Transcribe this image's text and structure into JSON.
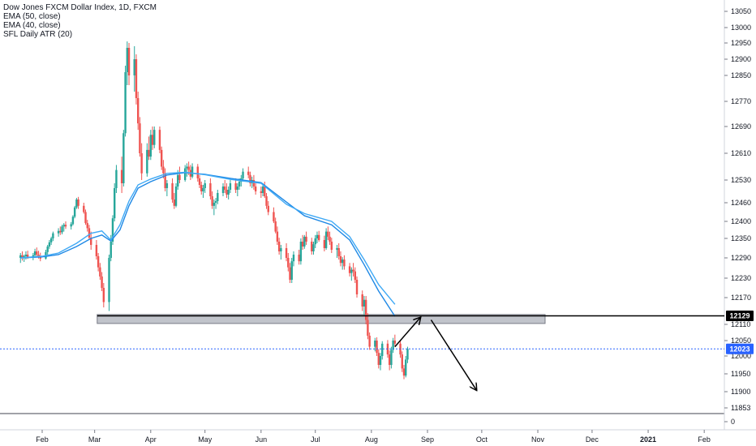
{
  "chart_data": {
    "type": "candlestick",
    "legend": {
      "symbol": "Dow Jones FXCM Dollar Index, 1D, FXCM",
      "ema50": "EMA (50, close)",
      "ema40": "EMA (40, close)",
      "atr": "SFL Daily ATR (20)"
    },
    "y_ticks": [
      "13050",
      "13000",
      "12950",
      "12900",
      "12850",
      "12770",
      "12690",
      "12610",
      "12530",
      "12460",
      "12400",
      "12350",
      "12290",
      "12230",
      "12170",
      "12110",
      "12050",
      "12000",
      "11950",
      "11900",
      "11853",
      "0"
    ],
    "x_ticks": [
      "Feb",
      "Mar",
      "Apr",
      "May",
      "Jun",
      "Jul",
      "Aug",
      "Sep",
      "Oct",
      "Nov",
      "Dec",
      "2021",
      "Feb"
    ],
    "price_tags": [
      {
        "label": "12129",
        "color": "#000000"
      },
      {
        "label": "12023",
        "color": "#2962ff"
      }
    ],
    "colors": {
      "up": "#26a69a",
      "down": "#ef5350",
      "ema50": "#1e88e5",
      "ema40": "#3fa9f5",
      "zone": "#b2b5be",
      "drawing": "#000000",
      "last_price": "#2962ff"
    },
    "support_zone": {
      "low": 12112,
      "high": 12132
    },
    "horizontal_level": 12129,
    "last_price": 12023,
    "ema50_points": [
      [
        "2020-01-20",
        12290
      ],
      [
        "2020-02-01",
        12293
      ],
      [
        "2020-02-10",
        12300
      ],
      [
        "2020-02-20",
        12325
      ],
      [
        "2020-02-28",
        12350
      ],
      [
        "2020-03-05",
        12360
      ],
      [
        "2020-03-10",
        12342
      ],
      [
        "2020-03-15",
        12375
      ],
      [
        "2020-03-20",
        12450
      ],
      [
        "2020-03-25",
        12505
      ],
      [
        "2020-04-01",
        12525
      ],
      [
        "2020-04-10",
        12545
      ],
      [
        "2020-04-20",
        12552
      ],
      [
        "2020-05-01",
        12547
      ],
      [
        "2020-05-15",
        12535
      ],
      [
        "2020-06-01",
        12522
      ],
      [
        "2020-06-15",
        12462
      ],
      [
        "2020-06-25",
        12418
      ],
      [
        "2020-07-10",
        12390
      ],
      [
        "2020-07-20",
        12345
      ],
      [
        "2020-07-28",
        12270
      ],
      [
        "2020-08-05",
        12190
      ],
      [
        "2020-08-14",
        12128
      ]
    ],
    "ema40_points": [
      [
        "2020-01-20",
        12290
      ],
      [
        "2020-02-01",
        12295
      ],
      [
        "2020-02-10",
        12305
      ],
      [
        "2020-02-20",
        12335
      ],
      [
        "2020-02-28",
        12365
      ],
      [
        "2020-03-05",
        12372
      ],
      [
        "2020-03-10",
        12345
      ],
      [
        "2020-03-15",
        12390
      ],
      [
        "2020-03-20",
        12465
      ],
      [
        "2020-03-25",
        12515
      ],
      [
        "2020-04-01",
        12533
      ],
      [
        "2020-04-10",
        12550
      ],
      [
        "2020-04-20",
        12553
      ],
      [
        "2020-05-01",
        12546
      ],
      [
        "2020-05-15",
        12532
      ],
      [
        "2020-06-01",
        12520
      ],
      [
        "2020-06-15",
        12455
      ],
      [
        "2020-06-25",
        12425
      ],
      [
        "2020-07-10",
        12400
      ],
      [
        "2020-07-20",
        12355
      ],
      [
        "2020-07-28",
        12285
      ],
      [
        "2020-08-05",
        12210
      ],
      [
        "2020-08-14",
        12155
      ]
    ],
    "projection_points": [
      [
        "2020-08-14",
        12030
      ],
      [
        "2020-08-28",
        12125
      ],
      [
        "2020-09-03",
        12120
      ],
      [
        "2020-09-28",
        11905
      ]
    ],
    "candles": [
      [
        "2020-01-20",
        12290,
        12305,
        12275,
        12298
      ],
      [
        "2020-01-21",
        12298,
        12310,
        12282,
        12290
      ],
      [
        "2020-01-22",
        12290,
        12300,
        12278,
        12295
      ],
      [
        "2020-01-23",
        12295,
        12310,
        12285,
        12300
      ],
      [
        "2020-01-24",
        12300,
        12312,
        12287,
        12292
      ],
      [
        "2020-01-27",
        12292,
        12305,
        12283,
        12298
      ],
      [
        "2020-01-28",
        12298,
        12318,
        12290,
        12310
      ],
      [
        "2020-01-29",
        12310,
        12322,
        12295,
        12300
      ],
      [
        "2020-01-30",
        12300,
        12312,
        12288,
        12295
      ],
      [
        "2020-01-31",
        12295,
        12306,
        12280,
        12288
      ],
      [
        "2020-02-03",
        12288,
        12315,
        12285,
        12308
      ],
      [
        "2020-02-04",
        12308,
        12330,
        12300,
        12325
      ],
      [
        "2020-02-05",
        12325,
        12345,
        12318,
        12338
      ],
      [
        "2020-02-06",
        12338,
        12355,
        12330,
        12350
      ],
      [
        "2020-02-07",
        12350,
        12370,
        12342,
        12365
      ],
      [
        "2020-02-10",
        12365,
        12380,
        12355,
        12372
      ],
      [
        "2020-02-11",
        12372,
        12385,
        12360,
        12368
      ],
      [
        "2020-02-12",
        12368,
        12390,
        12362,
        12385
      ],
      [
        "2020-02-13",
        12385,
        12395,
        12370,
        12390
      ],
      [
        "2020-02-14",
        12390,
        12400,
        12378,
        12385
      ],
      [
        "2020-02-17",
        12385,
        12398,
        12376,
        12392
      ],
      [
        "2020-02-18",
        12392,
        12420,
        12388,
        12415
      ],
      [
        "2020-02-19",
        12415,
        12450,
        12410,
        12445
      ],
      [
        "2020-02-20",
        12445,
        12475,
        12440,
        12470
      ],
      [
        "2020-02-21",
        12470,
        12478,
        12440,
        12450
      ],
      [
        "2020-02-24",
        12450,
        12460,
        12425,
        12430
      ],
      [
        "2020-02-25",
        12430,
        12438,
        12390,
        12395
      ],
      [
        "2020-02-26",
        12395,
        12405,
        12370,
        12380
      ],
      [
        "2020-02-27",
        12380,
        12390,
        12345,
        12352
      ],
      [
        "2020-02-28",
        12352,
        12370,
        12315,
        12330
      ],
      [
        "2020-03-02",
        12330,
        12345,
        12285,
        12295
      ],
      [
        "2020-03-03",
        12295,
        12305,
        12250,
        12262
      ],
      [
        "2020-03-04",
        12262,
        12275,
        12225,
        12235
      ],
      [
        "2020-03-05",
        12235,
        12248,
        12190,
        12200
      ],
      [
        "2020-03-06",
        12200,
        12215,
        12148,
        12160
      ],
      [
        "2020-03-09",
        12160,
        12300,
        12140,
        12290
      ],
      [
        "2020-03-10",
        12290,
        12360,
        12280,
        12340
      ],
      [
        "2020-03-11",
        12340,
        12420,
        12330,
        12410
      ],
      [
        "2020-03-12",
        12410,
        12520,
        12400,
        12505
      ],
      [
        "2020-03-13",
        12505,
        12575,
        12490,
        12560
      ],
      [
        "2020-03-16",
        12560,
        12600,
        12490,
        12520
      ],
      [
        "2020-03-17",
        12520,
        12680,
        12510,
        12670
      ],
      [
        "2020-03-18",
        12670,
        12880,
        12660,
        12860
      ],
      [
        "2020-03-19",
        12860,
        12955,
        12820,
        12935
      ],
      [
        "2020-03-20",
        12935,
        12950,
        12820,
        12850
      ],
      [
        "2020-03-23",
        12850,
        12940,
        12800,
        12900
      ],
      [
        "2020-03-24",
        12900,
        12915,
        12760,
        12780
      ],
      [
        "2020-03-25",
        12780,
        12800,
        12680,
        12700
      ],
      [
        "2020-03-26",
        12700,
        12720,
        12600,
        12610
      ],
      [
        "2020-03-27",
        12610,
        12640,
        12530,
        12550
      ],
      [
        "2020-03-30",
        12550,
        12640,
        12540,
        12620
      ],
      [
        "2020-03-31",
        12620,
        12660,
        12590,
        12600
      ],
      [
        "2020-04-01",
        12600,
        12680,
        12590,
        12665
      ],
      [
        "2020-04-02",
        12665,
        12690,
        12620,
        12635
      ],
      [
        "2020-04-03",
        12635,
        12690,
        12625,
        12680
      ],
      [
        "2020-04-06",
        12680,
        12690,
        12610,
        12620
      ],
      [
        "2020-04-07",
        12620,
        12630,
        12560,
        12570
      ],
      [
        "2020-04-08",
        12570,
        12590,
        12535,
        12550
      ],
      [
        "2020-04-09",
        12550,
        12565,
        12495,
        12505
      ],
      [
        "2020-04-10",
        12505,
        12530,
        12480,
        12520
      ],
      [
        "2020-04-13",
        12520,
        12535,
        12460,
        12470
      ],
      [
        "2020-04-14",
        12470,
        12490,
        12440,
        12450
      ],
      [
        "2020-04-15",
        12450,
        12520,
        12445,
        12510
      ],
      [
        "2020-04-16",
        12510,
        12560,
        12500,
        12545
      ],
      [
        "2020-04-17",
        12545,
        12570,
        12520,
        12530
      ],
      [
        "2020-04-20",
        12530,
        12575,
        12525,
        12565
      ],
      [
        "2020-04-21",
        12565,
        12580,
        12540,
        12570
      ],
      [
        "2020-04-22",
        12570,
        12585,
        12545,
        12560
      ],
      [
        "2020-04-23",
        12560,
        12575,
        12530,
        12540
      ],
      [
        "2020-04-24",
        12540,
        12580,
        12535,
        12570
      ],
      [
        "2020-04-27",
        12570,
        12578,
        12525,
        12535
      ],
      [
        "2020-04-28",
        12535,
        12545,
        12505,
        12515
      ],
      [
        "2020-04-29",
        12515,
        12525,
        12485,
        12495
      ],
      [
        "2020-04-30",
        12495,
        12515,
        12475,
        12505
      ],
      [
        "2020-05-01",
        12505,
        12530,
        12490,
        12520
      ],
      [
        "2020-05-04",
        12520,
        12535,
        12470,
        12480
      ],
      [
        "2020-05-05",
        12480,
        12495,
        12440,
        12450
      ],
      [
        "2020-05-06",
        12450,
        12470,
        12420,
        12460
      ],
      [
        "2020-05-07",
        12460,
        12475,
        12440,
        12465
      ],
      [
        "2020-05-08",
        12465,
        12500,
        12455,
        12490
      ],
      [
        "2020-05-11",
        12490,
        12520,
        12480,
        12510
      ],
      [
        "2020-05-12",
        12510,
        12530,
        12490,
        12500
      ],
      [
        "2020-05-13",
        12500,
        12520,
        12475,
        12485
      ],
      [
        "2020-05-14",
        12485,
        12510,
        12470,
        12500
      ],
      [
        "2020-05-15",
        12500,
        12530,
        12490,
        12520
      ],
      [
        "2020-05-18",
        12520,
        12535,
        12490,
        12500
      ],
      [
        "2020-05-19",
        12500,
        12520,
        12480,
        12510
      ],
      [
        "2020-05-20",
        12510,
        12535,
        12500,
        12525
      ],
      [
        "2020-05-21",
        12525,
        12545,
        12510,
        12535
      ],
      [
        "2020-05-22",
        12535,
        12565,
        12525,
        12555
      ],
      [
        "2020-05-25",
        12555,
        12570,
        12535,
        12545
      ],
      [
        "2020-05-26",
        12545,
        12555,
        12510,
        12520
      ],
      [
        "2020-05-27",
        12520,
        12540,
        12505,
        12530
      ],
      [
        "2020-05-28",
        12530,
        12545,
        12500,
        12510
      ],
      [
        "2020-05-29",
        12510,
        12520,
        12485,
        12495
      ],
      [
        "2020-06-01",
        12495,
        12510,
        12475,
        12490
      ],
      [
        "2020-06-02",
        12490,
        12520,
        12480,
        12510
      ],
      [
        "2020-06-03",
        12510,
        12525,
        12475,
        12480
      ],
      [
        "2020-06-04",
        12480,
        12490,
        12440,
        12450
      ],
      [
        "2020-06-05",
        12450,
        12465,
        12420,
        12430
      ],
      [
        "2020-06-08",
        12430,
        12445,
        12395,
        12400
      ],
      [
        "2020-06-09",
        12400,
        12412,
        12365,
        12370
      ],
      [
        "2020-06-10",
        12370,
        12385,
        12330,
        12340
      ],
      [
        "2020-06-11",
        12340,
        12352,
        12300,
        12310
      ],
      [
        "2020-06-12",
        12310,
        12330,
        12285,
        12320
      ],
      [
        "2020-06-15",
        12320,
        12335,
        12280,
        12290
      ],
      [
        "2020-06-16",
        12290,
        12305,
        12250,
        12262
      ],
      [
        "2020-06-17",
        12262,
        12275,
        12215,
        12225
      ],
      [
        "2020-06-18",
        12225,
        12290,
        12215,
        12280
      ],
      [
        "2020-06-19",
        12280,
        12310,
        12265,
        12300
      ],
      [
        "2020-06-22",
        12300,
        12315,
        12270,
        12280
      ],
      [
        "2020-06-23",
        12280,
        12350,
        12270,
        12340
      ],
      [
        "2020-06-24",
        12340,
        12360,
        12315,
        12325
      ],
      [
        "2020-06-25",
        12325,
        12360,
        12318,
        12355
      ],
      [
        "2020-06-26",
        12355,
        12370,
        12330,
        12340
      ],
      [
        "2020-06-29",
        12340,
        12352,
        12300,
        12310
      ],
      [
        "2020-06-30",
        12310,
        12340,
        12300,
        12332
      ],
      [
        "2020-07-01",
        12332,
        12360,
        12320,
        12350
      ],
      [
        "2020-07-02",
        12350,
        12370,
        12335,
        12360
      ],
      [
        "2020-07-03",
        12360,
        12372,
        12340,
        12345
      ],
      [
        "2020-07-06",
        12345,
        12358,
        12310,
        12320
      ],
      [
        "2020-07-07",
        12320,
        12380,
        12315,
        12370
      ],
      [
        "2020-07-08",
        12370,
        12385,
        12345,
        12355
      ],
      [
        "2020-07-09",
        12355,
        12370,
        12330,
        12340
      ],
      [
        "2020-07-10",
        12340,
        12352,
        12305,
        12315
      ],
      [
        "2020-07-13",
        12315,
        12330,
        12290,
        12320
      ],
      [
        "2020-07-14",
        12320,
        12335,
        12285,
        12295
      ],
      [
        "2020-07-15",
        12295,
        12310,
        12265,
        12275
      ],
      [
        "2020-07-16",
        12275,
        12292,
        12255,
        12285
      ],
      [
        "2020-07-17",
        12285,
        12298,
        12255,
        12265
      ],
      [
        "2020-07-20",
        12265,
        12275,
        12235,
        12245
      ],
      [
        "2020-07-21",
        12245,
        12262,
        12222,
        12255
      ],
      [
        "2020-07-22",
        12255,
        12275,
        12235,
        12250
      ],
      [
        "2020-07-23",
        12250,
        12262,
        12215,
        12225
      ],
      [
        "2020-07-24",
        12225,
        12235,
        12170,
        12180
      ],
      [
        "2020-07-27",
        12180,
        12192,
        12140,
        12150
      ],
      [
        "2020-07-28",
        12150,
        12175,
        12130,
        12165
      ],
      [
        "2020-07-29",
        12165,
        12175,
        12110,
        12120
      ],
      [
        "2020-07-30",
        12120,
        12135,
        12055,
        12068
      ],
      [
        "2020-07-31",
        12068,
        12080,
        12020,
        12030
      ],
      [
        "2020-08-03",
        12030,
        12060,
        12015,
        12050
      ],
      [
        "2020-08-04",
        12050,
        12062,
        12000,
        12010
      ],
      [
        "2020-08-05",
        12010,
        12022,
        11965,
        11975
      ],
      [
        "2020-08-06",
        11975,
        12010,
        11960,
        12000
      ],
      [
        "2020-08-07",
        12000,
        12048,
        11990,
        12040
      ],
      [
        "2020-08-10",
        12040,
        12052,
        11995,
        12005
      ],
      [
        "2020-08-11",
        12005,
        12018,
        11960,
        11975
      ],
      [
        "2020-08-12",
        11975,
        12030,
        11965,
        12020
      ],
      [
        "2020-08-13",
        12020,
        12060,
        12010,
        12050
      ],
      [
        "2020-08-14",
        12050,
        12072,
        12030,
        12040
      ],
      [
        "2020-08-17",
        12040,
        12050,
        11995,
        12005
      ],
      [
        "2020-08-18",
        12005,
        12015,
        11955,
        11965
      ],
      [
        "2020-08-19",
        11965,
        11975,
        11935,
        11945
      ],
      [
        "2020-08-20",
        11945,
        12000,
        11940,
        11990
      ],
      [
        "2020-08-21",
        11990,
        12030,
        11980,
        12023
      ]
    ]
  }
}
